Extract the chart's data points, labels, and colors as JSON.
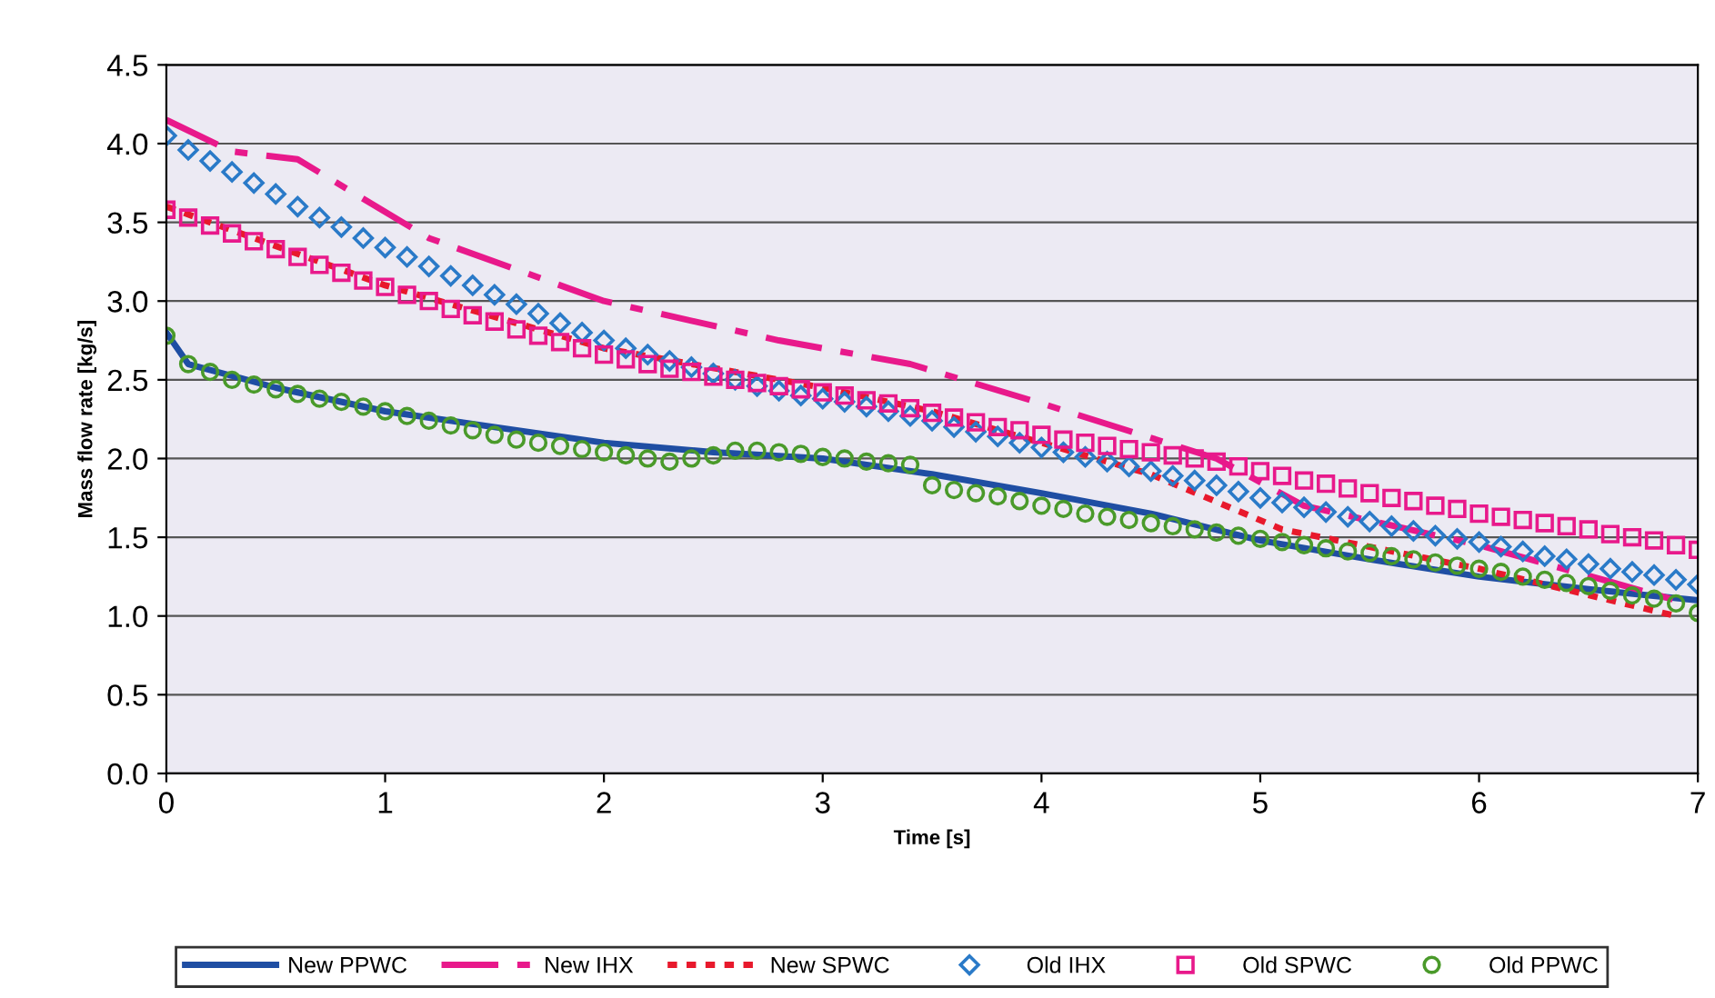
{
  "chart_data": {
    "type": "line",
    "xlabel": "Time [s]",
    "ylabel": "Mass flow rate [kg/s]",
    "xlim": [
      0,
      7
    ],
    "xticks": [
      0,
      1,
      2,
      3,
      4,
      5,
      6,
      7
    ],
    "ylim": [
      0,
      4.5
    ],
    "yticks": [
      {
        "value": 0,
        "label": "0.0"
      },
      {
        "value": 0.5,
        "label": "0.5"
      },
      {
        "value": 1,
        "label": "1.0"
      },
      {
        "value": 1.5,
        "label": "1.5"
      },
      {
        "value": 2,
        "label": "2.0"
      },
      {
        "value": 2.5,
        "label": "2.5"
      },
      {
        "value": 3,
        "label": "3.0"
      },
      {
        "value": 3.5,
        "label": "3.5"
      },
      {
        "value": 4,
        "label": "4.0"
      },
      {
        "value": 4.5,
        "label": "4.5"
      }
    ],
    "grid": "y",
    "legend": "bottom",
    "series": [
      {
        "name": "New PPWC",
        "line_style": "solid",
        "color": "#1f4ea3",
        "x": [
          0,
          0.1,
          0.5,
          1,
          1.5,
          2,
          2.5,
          3,
          3.5,
          4,
          4.5,
          5,
          5.5,
          6,
          6.5,
          7
        ],
        "values": [
          2.8,
          2.6,
          2.45,
          2.3,
          2.2,
          2.1,
          2.04,
          2.0,
          1.9,
          1.78,
          1.65,
          1.48,
          1.36,
          1.25,
          1.17,
          1.1
        ]
      },
      {
        "name": "New IHX",
        "line_style": "dashed",
        "color": "#e8198b",
        "x": [
          0,
          0.3,
          0.6,
          1.2,
          2,
          2.8,
          3.4,
          4,
          4.8,
          5.2,
          6,
          6.9
        ],
        "values": [
          4.15,
          3.95,
          3.9,
          3.4,
          3.0,
          2.75,
          2.6,
          2.35,
          2.0,
          1.7,
          1.45,
          1.1
        ]
      },
      {
        "name": "New SPWC",
        "line_style": "dotted",
        "color": "#e8192c",
        "x": [
          0,
          1,
          2,
          3,
          3.5,
          4,
          4.5,
          5.1,
          6,
          6.9
        ],
        "values": [
          3.6,
          3.1,
          2.7,
          2.45,
          2.3,
          2.1,
          1.9,
          1.55,
          1.3,
          1.0
        ]
      },
      {
        "name": "Old IHX",
        "type": "scatter",
        "marker": "diamond",
        "color": "#2a7ac8",
        "values": [
          4.05,
          3.96,
          3.89,
          3.82,
          3.75,
          3.68,
          3.6,
          3.53,
          3.47,
          3.4,
          3.34,
          3.28,
          3.22,
          3.16,
          3.1,
          3.04,
          2.98,
          2.92,
          2.86,
          2.8,
          2.75,
          2.7,
          2.66,
          2.62,
          2.58,
          2.54,
          2.5,
          2.46,
          2.43,
          2.4,
          2.38,
          2.36,
          2.33,
          2.3,
          2.27,
          2.24,
          2.2,
          2.17,
          2.14,
          2.1,
          2.07,
          2.04,
          2.01,
          1.98,
          1.95,
          1.92,
          1.89,
          1.86,
          1.83,
          1.79,
          1.75,
          1.72,
          1.69,
          1.66,
          1.63,
          1.6,
          1.57,
          1.54,
          1.51,
          1.49,
          1.47,
          1.44,
          1.41,
          1.38,
          1.36,
          1.33,
          1.3,
          1.28,
          1.26,
          1.23,
          1.2
        ]
      },
      {
        "name": "Old SPWC",
        "type": "scatter",
        "marker": "square",
        "color": "#e8198b",
        "values": [
          3.58,
          3.53,
          3.48,
          3.43,
          3.38,
          3.33,
          3.28,
          3.23,
          3.18,
          3.13,
          3.09,
          3.04,
          3.0,
          2.95,
          2.91,
          2.87,
          2.82,
          2.78,
          2.74,
          2.7,
          2.66,
          2.63,
          2.6,
          2.57,
          2.55,
          2.52,
          2.5,
          2.48,
          2.46,
          2.44,
          2.42,
          2.4,
          2.37,
          2.35,
          2.32,
          2.29,
          2.26,
          2.23,
          2.2,
          2.18,
          2.15,
          2.12,
          2.1,
          2.08,
          2.06,
          2.04,
          2.02,
          2.0,
          1.98,
          1.95,
          1.92,
          1.89,
          1.86,
          1.84,
          1.81,
          1.78,
          1.75,
          1.73,
          1.7,
          1.68,
          1.65,
          1.63,
          1.61,
          1.59,
          1.57,
          1.55,
          1.52,
          1.5,
          1.48,
          1.45,
          1.42
        ]
      },
      {
        "name": "Old PPWC",
        "type": "scatter",
        "marker": "circle",
        "color": "#4a9a2a",
        "values": [
          2.78,
          2.6,
          2.55,
          2.5,
          2.47,
          2.44,
          2.41,
          2.38,
          2.36,
          2.33,
          2.3,
          2.27,
          2.24,
          2.21,
          2.18,
          2.15,
          2.12,
          2.1,
          2.08,
          2.06,
          2.04,
          2.02,
          2.0,
          1.98,
          2.0,
          2.02,
          2.05,
          2.05,
          2.04,
          2.03,
          2.01,
          2.0,
          1.98,
          1.97,
          1.96,
          1.83,
          1.8,
          1.78,
          1.76,
          1.73,
          1.7,
          1.68,
          1.65,
          1.63,
          1.61,
          1.59,
          1.57,
          1.55,
          1.53,
          1.51,
          1.49,
          1.47,
          1.45,
          1.43,
          1.41,
          1.4,
          1.38,
          1.36,
          1.34,
          1.32,
          1.3,
          1.28,
          1.25,
          1.23,
          1.21,
          1.19,
          1.16,
          1.13,
          1.11,
          1.08,
          1.02
        ]
      }
    ],
    "x": [
      0,
      0.1,
      0.2,
      0.3,
      0.4,
      0.5,
      0.6,
      0.7,
      0.8,
      0.9,
      1,
      1.1,
      1.2,
      1.3,
      1.4,
      1.5,
      1.6,
      1.7,
      1.8,
      1.9,
      2,
      2.1,
      2.2,
      2.3,
      2.4,
      2.5,
      2.6,
      2.7,
      2.8,
      2.9,
      3,
      3.1,
      3.2,
      3.3,
      3.4,
      3.5,
      3.6,
      3.7,
      3.8,
      3.9,
      4,
      4.1,
      4.2,
      4.3,
      4.4,
      4.5,
      4.6,
      4.7,
      4.8,
      4.9,
      5,
      5.1,
      5.2,
      5.3,
      5.4,
      5.5,
      5.6,
      5.7,
      5.8,
      5.9,
      6,
      6.1,
      6.2,
      6.3,
      6.4,
      6.5,
      6.6,
      6.7,
      6.8,
      6.9,
      7
    ]
  }
}
